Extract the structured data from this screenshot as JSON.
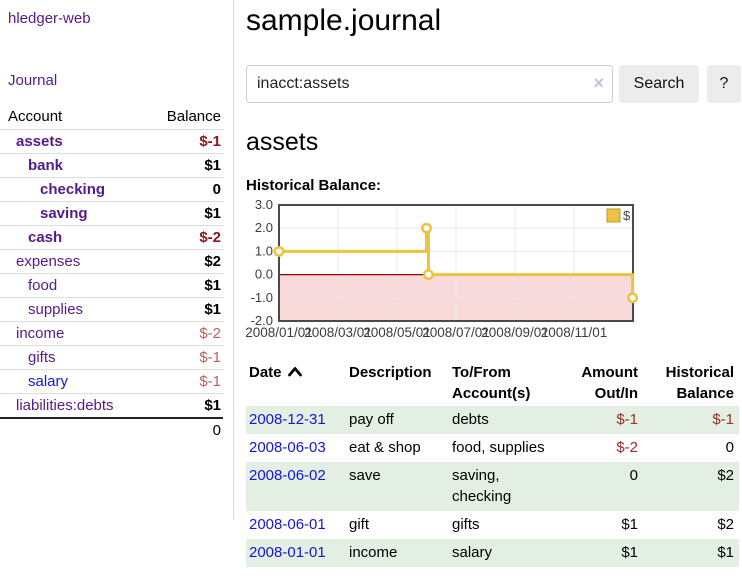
{
  "app": {
    "title": "hledger-web"
  },
  "sidebar": {
    "journal_link": "Journal",
    "header": {
      "account": "Account",
      "balance": "Balance"
    },
    "accounts": [
      {
        "name": "assets",
        "balance": "$-1",
        "depth": 1,
        "bold": true,
        "negative": "strong"
      },
      {
        "name": "bank",
        "balance": "$1",
        "depth": 2,
        "bold": true
      },
      {
        "name": "checking",
        "balance": "0",
        "depth": 3,
        "bold": true
      },
      {
        "name": "saving",
        "balance": "$1",
        "depth": 3,
        "bold": true
      },
      {
        "name": "cash",
        "balance": "$-2",
        "depth": 2,
        "bold": true,
        "negative": "strong"
      },
      {
        "name": "expenses",
        "balance": "$2",
        "depth": 1
      },
      {
        "name": "food",
        "balance": "$1",
        "depth": 2
      },
      {
        "name": "supplies",
        "balance": "$1",
        "depth": 2
      },
      {
        "name": "income",
        "balance": "$-2",
        "depth": 1,
        "negative": "soft"
      },
      {
        "name": "gifts",
        "balance": "$-1",
        "depth": 2,
        "negative": "soft"
      },
      {
        "name": "salary",
        "balance": "$-1",
        "depth": 2,
        "negative": "soft",
        "link_style": "blue"
      },
      {
        "name": "liabilities:debts",
        "balance": "$1",
        "depth": 1
      }
    ],
    "total": "0"
  },
  "header": {
    "title": "sample.journal"
  },
  "search": {
    "value": "inacct:assets",
    "clear_icon": "×",
    "button_label": "Search",
    "help_label": "?"
  },
  "register": {
    "heading": "assets",
    "chart_label": "Historical Balance:"
  },
  "chart_data": {
    "type": "line",
    "step": true,
    "title": "Historical Balance",
    "series": [
      {
        "name": "$",
        "color": "#edc240",
        "points": [
          {
            "x": "2008/01/01",
            "y": 1.0
          },
          {
            "x": "2008/06/01",
            "y": 2.0
          },
          {
            "x": "2008/06/03",
            "y": 0.0
          },
          {
            "x": "2008/12/31",
            "y": -1.0
          }
        ]
      }
    ],
    "ylim": [
      -2.0,
      3.0
    ],
    "yticks": [
      3.0,
      2.0,
      1.0,
      0.0,
      -1.0,
      -2.0
    ],
    "xticks": [
      "2008/01/01",
      "2008/03/01",
      "2008/05/01",
      "2008/07/01",
      "2008/09/01",
      "2008/11/01"
    ],
    "x_range_months": 12,
    "legend": {
      "label": "$",
      "position": "top-right"
    },
    "grid": true,
    "negative_region_shaded": true
  },
  "register_table": {
    "columns": [
      {
        "label": "Date",
        "sorted": "ascending"
      },
      {
        "label": "Description"
      },
      {
        "label": "To/From Account(s)"
      },
      {
        "label": "Amount Out/In"
      },
      {
        "label": "Historical Balance"
      }
    ],
    "rows": [
      {
        "date": "2008-12-31",
        "description": "pay off",
        "accounts": "debts",
        "amount": "$-1",
        "balance": "$-1",
        "amount_negative": true,
        "balance_negative": true
      },
      {
        "date": "2008-06-03",
        "description": "eat & shop",
        "accounts": "food, supplies",
        "amount": "$-2",
        "balance": "0",
        "amount_negative": true
      },
      {
        "date": "2008-06-02",
        "description": "save",
        "accounts": "saving, checking",
        "amount": "0",
        "balance": "$2"
      },
      {
        "date": "2008-06-01",
        "description": "gift",
        "accounts": "gifts",
        "amount": "$1",
        "balance": "$2"
      },
      {
        "date": "2008-01-01",
        "description": "income",
        "accounts": "salary",
        "amount": "$1",
        "balance": "$1"
      }
    ]
  },
  "colors": {
    "link_purple": "#551a8b",
    "link_blue": "#1414dd",
    "negative_strong": "#8f1313",
    "negative_soft": "#bb5f5f",
    "table_negative": "#9e2a2a",
    "row_stripe_green": "#e2efe2",
    "chart_line_gold": "#edc240",
    "chart_negative_bg": "#f9dada",
    "chart_zero_line": "#8b0000",
    "chart_grid": "#e8e8e8",
    "chart_border": "#4a4a4a"
  }
}
